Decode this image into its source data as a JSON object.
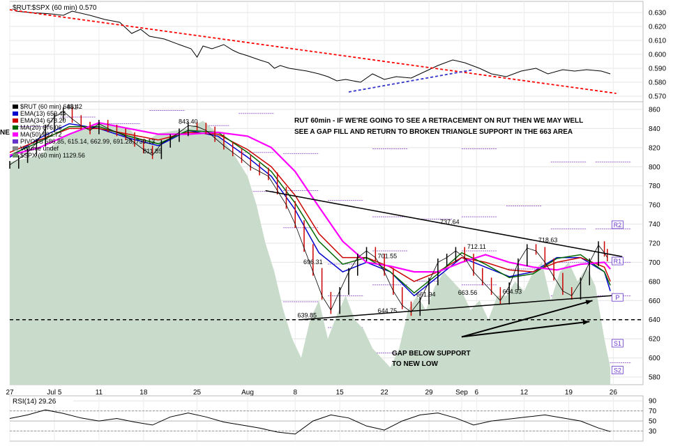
{
  "chart_data": [
    {
      "type": "line",
      "panel": "ratio",
      "title": "$RUT:$SPX (60 min) 0.570",
      "y_ticks": [
        0.57,
        0.58,
        0.59,
        0.6,
        0.61,
        0.62,
        0.63
      ],
      "ylim": [
        0.566,
        0.638
      ],
      "series": [
        {
          "name": "$RUT:$SPX",
          "x": [
            2,
            7,
            14,
            18,
            21,
            27,
            32,
            37,
            41,
            44,
            47,
            52,
            57,
            61,
            63,
            65,
            68,
            72,
            75,
            77,
            80,
            84,
            87,
            89,
            91,
            94,
            97,
            100,
            104,
            107,
            110,
            113,
            118,
            122,
            126,
            130,
            135,
            140,
            144,
            149,
            153,
            158,
            162,
            167,
            172,
            177,
            181,
            186,
            190,
            194,
            199,
            202
          ],
          "y": [
            0.631,
            0.63,
            0.629,
            0.628,
            0.631,
            0.628,
            0.625,
            0.623,
            0.615,
            0.618,
            0.613,
            0.611,
            0.607,
            0.604,
            0.598,
            0.606,
            0.604,
            0.607,
            0.603,
            0.601,
            0.599,
            0.596,
            0.594,
            0.59,
            0.592,
            0.59,
            0.589,
            0.588,
            0.586,
            0.584,
            0.581,
            0.582,
            0.58,
            0.586,
            0.582,
            0.584,
            0.583,
            0.588,
            0.592,
            0.596,
            0.594,
            0.59,
            0.586,
            0.584,
            0.588,
            0.59,
            0.586,
            0.589,
            0.588,
            0.589,
            0.588,
            0.586
          ]
        }
      ],
      "annotations": [
        {
          "type": "trendline",
          "style": "red-dashed",
          "from": [
            0,
            0.632
          ],
          "to": [
            204,
            0.572
          ]
        },
        {
          "type": "trendline",
          "style": "blue-dashed",
          "from": [
            114,
            0.573
          ],
          "to": [
            156,
            0.589
          ]
        }
      ]
    },
    {
      "type": "line",
      "panel": "price",
      "x_ticks": [
        {
          "x": 0,
          "label": "27"
        },
        {
          "x": 15,
          "label": "Jul 5"
        },
        {
          "x": 30,
          "label": "11"
        },
        {
          "x": 45,
          "label": "18"
        },
        {
          "x": 63,
          "label": "25"
        },
        {
          "x": 80,
          "label": "Aug"
        },
        {
          "x": 96,
          "label": "8"
        },
        {
          "x": 111,
          "label": "15"
        },
        {
          "x": 126,
          "label": "22"
        },
        {
          "x": 141,
          "label": "29"
        },
        {
          "x": 152,
          "label": "Sep"
        },
        {
          "x": 157,
          "label": "6"
        },
        {
          "x": 173,
          "label": "12"
        },
        {
          "x": 188,
          "label": "19"
        },
        {
          "x": 203,
          "label": "26"
        }
      ],
      "xlim": [
        0,
        213
      ],
      "y_ticks": [
        580,
        600,
        620,
        640,
        660,
        680,
        700,
        720,
        740,
        760,
        780,
        800,
        820,
        840,
        860
      ],
      "ylim": [
        572,
        868
      ],
      "legend": [
        {
          "label": "$RUT (60 min) 643.42",
          "color": "#000000"
        },
        {
          "label": "EMA(13) 659.44",
          "color": "#0000cc"
        },
        {
          "label": "EMA(34) 678.20",
          "color": "#cc0000"
        },
        {
          "label": "MA(20) 676.06",
          "color": "#006600"
        },
        {
          "label": "MA(50) 692.72",
          "color": "#ff00ff"
        },
        {
          "label": "PIVOTS 586.85, 615.14, 662.99, 691.28, 739.13",
          "color": "#6633cc"
        },
        {
          "label": "Volume undef",
          "color": "#888888"
        },
        {
          "label": "$SPX (60 min) 1129.56",
          "color": "#6b8e6b"
        }
      ],
      "series": [
        {
          "name": "$RUT",
          "x": [
            0,
            3,
            6,
            9,
            12,
            15,
            18,
            21,
            24,
            27,
            30,
            33,
            36,
            39,
            42,
            45,
            48,
            51,
            54,
            57,
            60,
            63,
            66,
            69,
            72,
            75,
            78,
            81,
            84,
            87,
            90,
            93,
            96,
            99,
            102,
            105,
            108,
            111,
            114,
            117,
            120,
            123,
            126,
            129,
            132,
            135,
            138,
            141,
            144,
            147,
            150,
            153,
            156,
            159,
            162,
            165,
            168,
            171,
            174,
            177,
            180,
            183,
            186,
            189,
            192,
            195,
            198,
            200,
            201
          ],
          "y": [
            802,
            808,
            815,
            825,
            840,
            852,
            858,
            850,
            843,
            838,
            845,
            840,
            836,
            832,
            825,
            818,
            812,
            824,
            830,
            836,
            843,
            842,
            838,
            830,
            822,
            815,
            808,
            800,
            795,
            790,
            775,
            760,
            740,
            715,
            690,
            665,
            650,
            670,
            690,
            705,
            712,
            705,
            690,
            670,
            655,
            648,
            660,
            680,
            700,
            705,
            712,
            705,
            690,
            680,
            670,
            660,
            675,
            700,
            715,
            712,
            700,
            685,
            670,
            665,
            680,
            700,
            718,
            710,
            705
          ]
        },
        {
          "name": "EMA(13)",
          "x": [
            0,
            10,
            20,
            30,
            40,
            50,
            60,
            70,
            80,
            88,
            96,
            104,
            112,
            120,
            128,
            136,
            144,
            152,
            160,
            168,
            176,
            184,
            192,
            200,
            202
          ],
          "y": [
            810,
            830,
            845,
            840,
            830,
            822,
            838,
            832,
            810,
            790,
            755,
            710,
            690,
            700,
            690,
            665,
            685,
            705,
            695,
            685,
            690,
            705,
            705,
            690,
            670
          ]
        },
        {
          "name": "EMA(34)",
          "x": [
            0,
            10,
            20,
            30,
            40,
            50,
            60,
            70,
            80,
            88,
            96,
            104,
            112,
            120,
            128,
            136,
            144,
            152,
            160,
            168,
            176,
            184,
            192,
            200,
            202
          ],
          "y": [
            815,
            828,
            840,
            840,
            834,
            828,
            836,
            834,
            818,
            800,
            770,
            730,
            705,
            705,
            695,
            680,
            690,
            705,
            700,
            692,
            690,
            700,
            705,
            695,
            680
          ]
        },
        {
          "name": "MA(20)",
          "x": [
            0,
            10,
            20,
            30,
            40,
            50,
            60,
            70,
            80,
            88,
            96,
            104,
            112,
            120,
            128,
            136,
            144,
            152,
            160,
            168,
            176,
            184,
            192,
            200,
            202
          ],
          "y": [
            812,
            826,
            842,
            842,
            832,
            824,
            838,
            836,
            815,
            795,
            762,
            722,
            698,
            705,
            690,
            668,
            688,
            710,
            698,
            684,
            688,
            704,
            708,
            690,
            676
          ]
        },
        {
          "name": "MA(50)",
          "x": [
            0,
            10,
            20,
            30,
            40,
            50,
            60,
            70,
            80,
            88,
            96,
            104,
            112,
            120,
            128,
            136,
            144,
            152,
            160,
            168,
            176,
            184,
            192,
            200,
            202
          ],
          "y": [
            812,
            820,
            834,
            846,
            840,
            834,
            834,
            836,
            832,
            820,
            795,
            758,
            722,
            700,
            696,
            690,
            690,
            700,
            708,
            700,
            695,
            692,
            698,
            700,
            693
          ]
        },
        {
          "name": "$SPX (60 min)",
          "x": [
            0,
            10,
            20,
            30,
            40,
            45,
            50,
            60,
            65,
            70,
            75,
            80,
            83,
            86,
            89,
            92,
            95,
            98,
            101,
            104,
            107,
            110,
            113,
            116,
            119,
            122,
            125,
            128,
            131,
            134,
            137,
            140,
            143,
            146,
            149,
            152,
            155,
            158,
            161,
            164,
            167,
            170,
            173,
            176,
            179,
            182,
            185,
            188,
            191,
            194,
            197,
            200,
            202
          ],
          "y": [
            805,
            812,
            835,
            845,
            840,
            825,
            835,
            840,
            848,
            835,
            815,
            790,
            760,
            720,
            690,
            650,
            620,
            600,
            640,
            660,
            620,
            645,
            665,
            640,
            630,
            610,
            600,
            590,
            610,
            650,
            665,
            650,
            675,
            690,
            680,
            670,
            650,
            660,
            640,
            665,
            665,
            680,
            670,
            690,
            700,
            660,
            690,
            700,
            680,
            695,
            675,
            620,
            590
          ]
        }
      ],
      "data_labels": [
        {
          "x": 21,
          "y": 858,
          "text": "861"
        },
        {
          "x": 48,
          "y": 812,
          "text": "811.85"
        },
        {
          "x": 60,
          "y": 843,
          "text": "843.40"
        },
        {
          "x": 102,
          "y": 696,
          "text": "696.31"
        },
        {
          "x": 100,
          "y": 640,
          "text": "639.85"
        },
        {
          "x": 127,
          "y": 702,
          "text": "701.55"
        },
        {
          "x": 127,
          "y": 645,
          "text": "644.75"
        },
        {
          "x": 140,
          "y": 662,
          "text": "661.94"
        },
        {
          "x": 148,
          "y": 738,
          "text": "737.64"
        },
        {
          "x": 157,
          "y": 712,
          "text": "712.11"
        },
        {
          "x": 154,
          "y": 664,
          "text": "663.56"
        },
        {
          "x": 169,
          "y": 665,
          "text": "664.93"
        },
        {
          "x": 181,
          "y": 719,
          "text": "718.63"
        }
      ],
      "pivot_labels": [
        {
          "y": 739,
          "text": "R2"
        },
        {
          "y": 701,
          "text": "R1"
        },
        {
          "y": 663,
          "text": "P"
        },
        {
          "y": 615,
          "text": "S1"
        },
        {
          "y": 587,
          "text": "S2"
        }
      ],
      "annotations": [
        {
          "type": "trendline",
          "style": "black",
          "from": [
            86,
            775
          ],
          "to": [
            206,
            706
          ]
        },
        {
          "type": "trendline",
          "style": "black",
          "from": [
            98,
            640
          ],
          "to": [
            206,
            666
          ]
        },
        {
          "type": "hline",
          "style": "black-dashed",
          "y": 640
        },
        {
          "type": "arrow",
          "from": [
            152,
            622
          ],
          "to": [
            196,
            660
          ]
        },
        {
          "type": "arrow",
          "from": [
            152,
            622
          ],
          "to": [
            195,
            638
          ]
        }
      ],
      "notes": [
        "RUT 60min - IF WE'RE GOING TO SEE A RETRACEMENT ON RUT THEN WE MAY WELL",
        "SEE A GAP FILL AND RETURN TO BROKEN TRIANGLE SUPPORT IN THE 663 AREA",
        "GAP BELOW SUPPORT",
        "TO NEW LOW"
      ],
      "cut_text": "NE"
    },
    {
      "type": "line",
      "panel": "rsi",
      "title": "RSI(14) 29.26",
      "y_ticks": [
        30,
        50,
        70,
        90
      ],
      "ylim": [
        10,
        100
      ],
      "reference_lines": [
        30,
        70
      ],
      "series": [
        {
          "name": "RSI(14)",
          "x": [
            0,
            6,
            12,
            18,
            24,
            30,
            36,
            42,
            48,
            54,
            60,
            66,
            72,
            78,
            84,
            90,
            96,
            102,
            108,
            114,
            120,
            126,
            132,
            138,
            144,
            150,
            156,
            162,
            168,
            174,
            180,
            186,
            192,
            198,
            202
          ],
          "y": [
            55,
            62,
            72,
            65,
            56,
            50,
            55,
            48,
            42,
            58,
            66,
            58,
            48,
            42,
            36,
            28,
            24,
            50,
            62,
            56,
            40,
            32,
            50,
            62,
            66,
            56,
            42,
            50,
            54,
            58,
            62,
            56,
            50,
            36,
            29
          ]
        }
      ]
    }
  ]
}
